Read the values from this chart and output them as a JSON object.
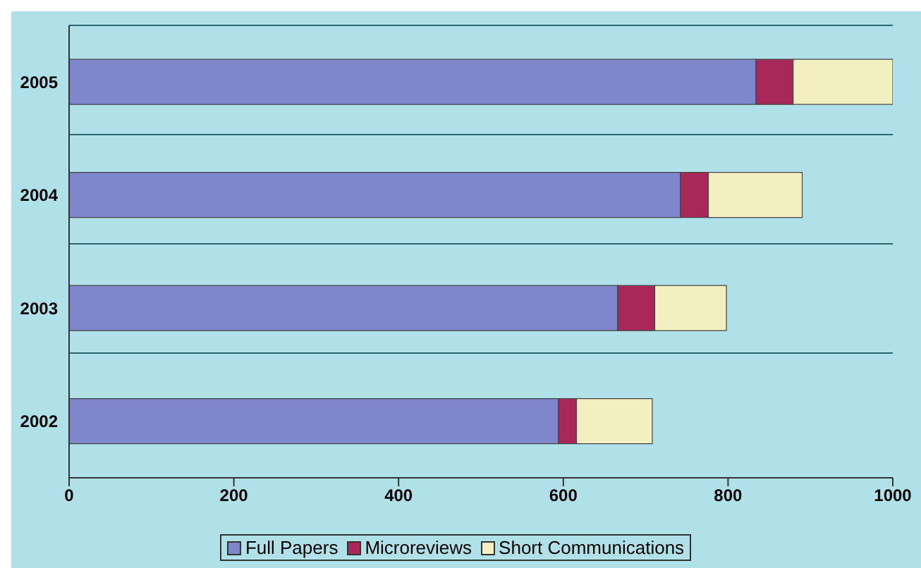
{
  "chart_data": {
    "type": "bar",
    "orientation": "horizontal",
    "stacked": true,
    "categories": [
      "2005",
      "2004",
      "2003",
      "2002"
    ],
    "series": [
      {
        "name": "Full Papers",
        "color": "#7f86cc",
        "values": [
          834,
          742,
          666,
          594
        ]
      },
      {
        "name": "Microreviews",
        "color": "#a8285a",
        "values": [
          45,
          34,
          45,
          22
        ]
      },
      {
        "name": "Short Communications",
        "color": "#f2f0c0",
        "values": [
          121,
          114,
          87,
          92
        ]
      }
    ],
    "xlim": [
      0,
      1000
    ],
    "xticks": [
      0,
      200,
      400,
      600,
      800,
      1000
    ],
    "grid": "y",
    "legend": "bottom"
  }
}
